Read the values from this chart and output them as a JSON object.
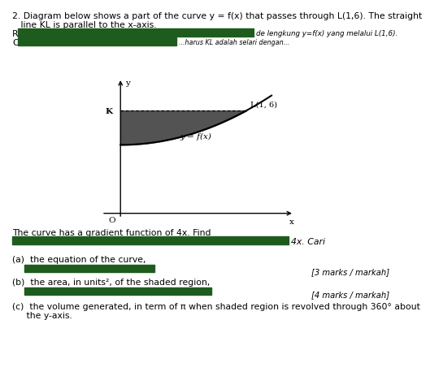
{
  "title_line1": "2. Diagram below shows a part of the curve y = f(x) that passes through L(1,6). The straight",
  "title_line2": "   line KL is parallel to the x-axis.",
  "graph_ylabel": "y",
  "graph_xlabel": "x",
  "origin_label": "O",
  "K_label": "K",
  "L_label": "L(1, 6)",
  "curve_label": "y = f(x)",
  "gradient_text": "The curve has a gradient function of 4x. Find",
  "part_a": "(a)  the equation of the curve,",
  "marks_a": "[3 marks / markah]",
  "part_b": "(b)  the area, in units², of the shaded region,",
  "marks_b": "[4 marks / markah]",
  "part_c": "(c)  the volume generated, in term of π when shaded region is revolved through 360° about",
  "part_c2": "     the y-axis.",
  "shaded_color": "#404040",
  "bg_color": "#ffffff",
  "green_bar_color": "#1e5c1e",
  "font_size_main": 7.8,
  "font_size_small": 7.2,
  "font_size_graph": 7.5
}
